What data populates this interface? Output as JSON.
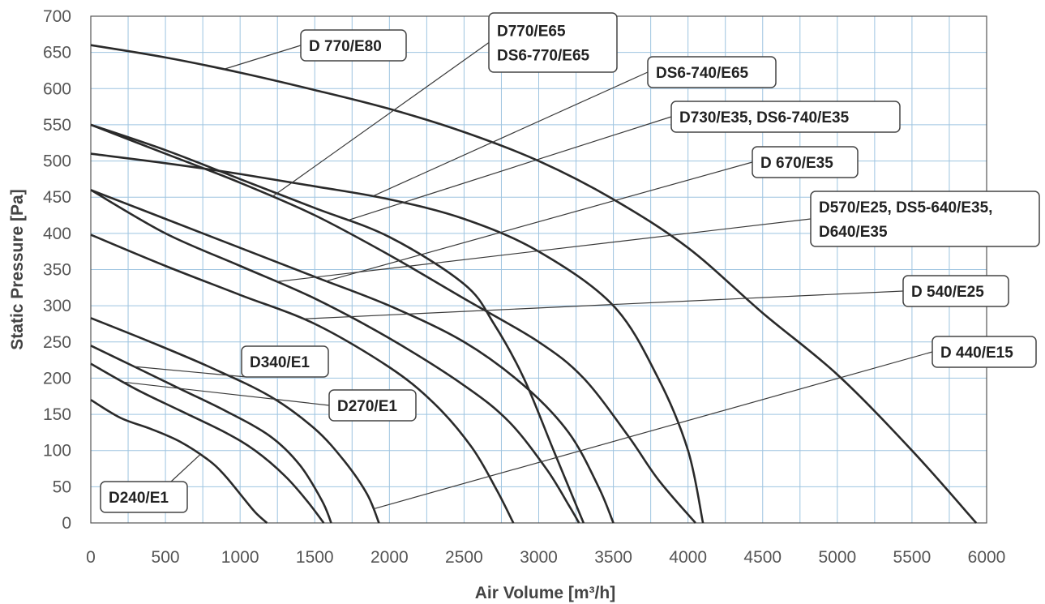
{
  "chart_data": {
    "type": "line",
    "xlabel": "Air Volume [m³/h]",
    "ylabel": "Static Pressure [Pa]",
    "xlim": [
      0,
      6000
    ],
    "ylim": [
      0,
      700
    ],
    "xticks": [
      "0",
      "500",
      "1000",
      "1500",
      "2000",
      "2500",
      "3000",
      "3500",
      "4000",
      "4500",
      "5000",
      "5500",
      "6000"
    ],
    "yticks": [
      "0",
      "50",
      "100",
      "150",
      "200",
      "250",
      "300",
      "350",
      "400",
      "450",
      "500",
      "550",
      "600",
      "650",
      "700"
    ],
    "grid": true,
    "series": [
      {
        "name": "D240/E1",
        "x": [
          0,
          200,
          400,
          600,
          800,
          900,
          1000,
          1100,
          1180
        ],
        "y": [
          170,
          145,
          130,
          112,
          85,
          65,
          40,
          15,
          0
        ]
      },
      {
        "name": "D270/E1",
        "x": [
          0,
          300,
          600,
          900,
          1100,
          1300,
          1450,
          1560
        ],
        "y": [
          220,
          185,
          155,
          125,
          100,
          65,
          30,
          0
        ]
      },
      {
        "name": "D340/E1",
        "x": [
          0,
          300,
          600,
          900,
          1200,
          1400,
          1550,
          1610
        ],
        "y": [
          245,
          215,
          185,
          155,
          120,
          80,
          30,
          0
        ]
      },
      {
        "name": "D 440/E15",
        "x": [
          0,
          400,
          800,
          1200,
          1500,
          1700,
          1850,
          1930
        ],
        "y": [
          283,
          250,
          215,
          175,
          130,
          85,
          40,
          0
        ]
      },
      {
        "name": "D 540/E25",
        "x": [
          0,
          500,
          1000,
          1500,
          2000,
          2300,
          2550,
          2720,
          2830
        ],
        "y": [
          398,
          355,
          315,
          275,
          215,
          165,
          105,
          45,
          0
        ]
      },
      {
        "name": "D570/E25, DS5-640/E35, D640/E35",
        "x": [
          0,
          500,
          1000,
          1500,
          2000,
          2500,
          2800,
          3050,
          3200,
          3270
        ],
        "y": [
          460,
          400,
          355,
          310,
          255,
          190,
          140,
          75,
          25,
          0
        ]
      },
      {
        "name": "D 670/E35",
        "x": [
          0,
          500,
          1000,
          1500,
          2000,
          2500,
          2900,
          3200,
          3400,
          3500
        ],
        "y": [
          460,
          420,
          380,
          340,
          300,
          250,
          190,
          125,
          50,
          0
        ]
      },
      {
        "name": "D730/E35,  DS6-740/E35",
        "x": [
          0,
          500,
          1000,
          1500,
          2000,
          2500,
          2700,
          2900,
          3100,
          3300
        ],
        "y": [
          550,
          515,
          475,
          435,
          395,
          330,
          275,
          200,
          100,
          0
        ]
      },
      {
        "name": "D770/E65 DS6-770/E65",
        "x": [
          0,
          500,
          1000,
          1500,
          2000,
          2500,
          3000,
          3300,
          3600,
          3800,
          4050
        ],
        "y": [
          550,
          510,
          470,
          425,
          370,
          310,
          250,
          200,
          120,
          60,
          0
        ]
      },
      {
        "name": "DS6-740/E65",
        "x": [
          0,
          500,
          1000,
          1500,
          2000,
          2500,
          3000,
          3500,
          3800,
          4000,
          4100
        ],
        "y": [
          510,
          497,
          482,
          465,
          447,
          420,
          375,
          300,
          200,
          100,
          0
        ]
      },
      {
        "name": "D 770/E80",
        "x": [
          0,
          500,
          1000,
          1500,
          2000,
          2500,
          3000,
          3500,
          4000,
          4500,
          5000,
          5500,
          5930
        ],
        "y": [
          660,
          643,
          622,
          598,
          572,
          540,
          500,
          447,
          380,
          290,
          205,
          100,
          0
        ]
      }
    ],
    "annotations": [
      {
        "series_index": 10,
        "lines": [
          "D 770/E80"
        ]
      },
      {
        "series_index": 8,
        "lines": [
          "D770/E65",
          "DS6-770/E65"
        ]
      },
      {
        "series_index": 9,
        "lines": [
          "DS6-740/E65"
        ]
      },
      {
        "series_index": 7,
        "lines": [
          "D730/E35,  DS6-740/E35"
        ]
      },
      {
        "series_index": 6,
        "lines": [
          "D 670/E35"
        ]
      },
      {
        "series_index": 5,
        "lines": [
          "D570/E25, DS5-640/E35,",
          "D640/E35"
        ]
      },
      {
        "series_index": 4,
        "lines": [
          "D 540/E25"
        ]
      },
      {
        "series_index": 3,
        "lines": [
          "D 440/E15"
        ]
      },
      {
        "series_index": 2,
        "lines": [
          "D340/E1"
        ]
      },
      {
        "series_index": 1,
        "lines": [
          "D270/E1"
        ]
      },
      {
        "series_index": 0,
        "lines": [
          "D240/E1"
        ]
      }
    ]
  }
}
